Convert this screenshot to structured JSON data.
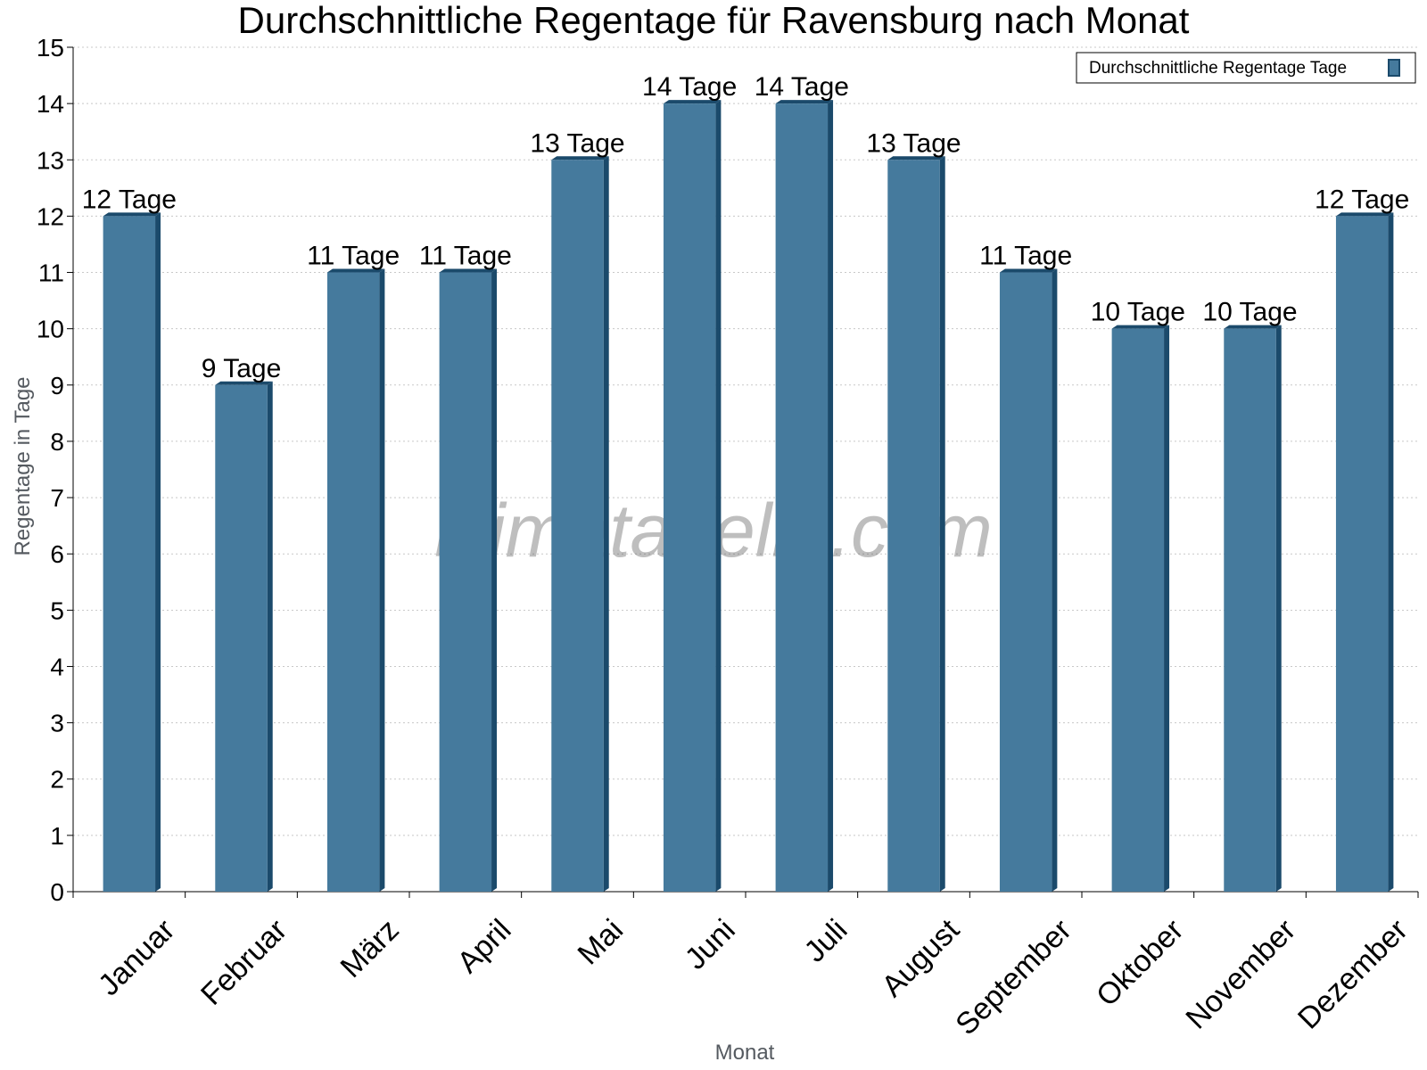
{
  "watermark": "klimatabelle.com",
  "chart_data": {
    "type": "bar",
    "title": "Durchschnittliche Regentage für Ravensburg nach Monat",
    "xlabel": "Monat",
    "ylabel": "Regentage in Tage",
    "ylim": [
      0,
      15
    ],
    "yticks": [
      "0",
      "1",
      "2",
      "3",
      "4",
      "5",
      "6",
      "7",
      "8",
      "9",
      "10",
      "11",
      "12",
      "13",
      "14",
      "15"
    ],
    "grid": true,
    "legend_position": "top-right",
    "categories": [
      "Januar",
      "Februar",
      "März",
      "April",
      "Mai",
      "Juni",
      "Juli",
      "August",
      "September",
      "Oktober",
      "November",
      "Dezember"
    ],
    "series": [
      {
        "name": "Durchschnittliche Regentage Tage",
        "color": "#457a9d",
        "side_color": "#1b4a6b",
        "values": [
          12,
          9,
          11,
          11,
          13,
          14,
          14,
          13,
          11,
          10,
          10,
          12
        ],
        "labels": [
          "12 Tage",
          "9 Tage",
          "11 Tage",
          "11 Tage",
          "13 Tage",
          "14 Tage",
          "14 Tage",
          "13 Tage",
          "11 Tage",
          "10 Tage",
          "10 Tage",
          "12 Tage"
        ]
      }
    ]
  }
}
